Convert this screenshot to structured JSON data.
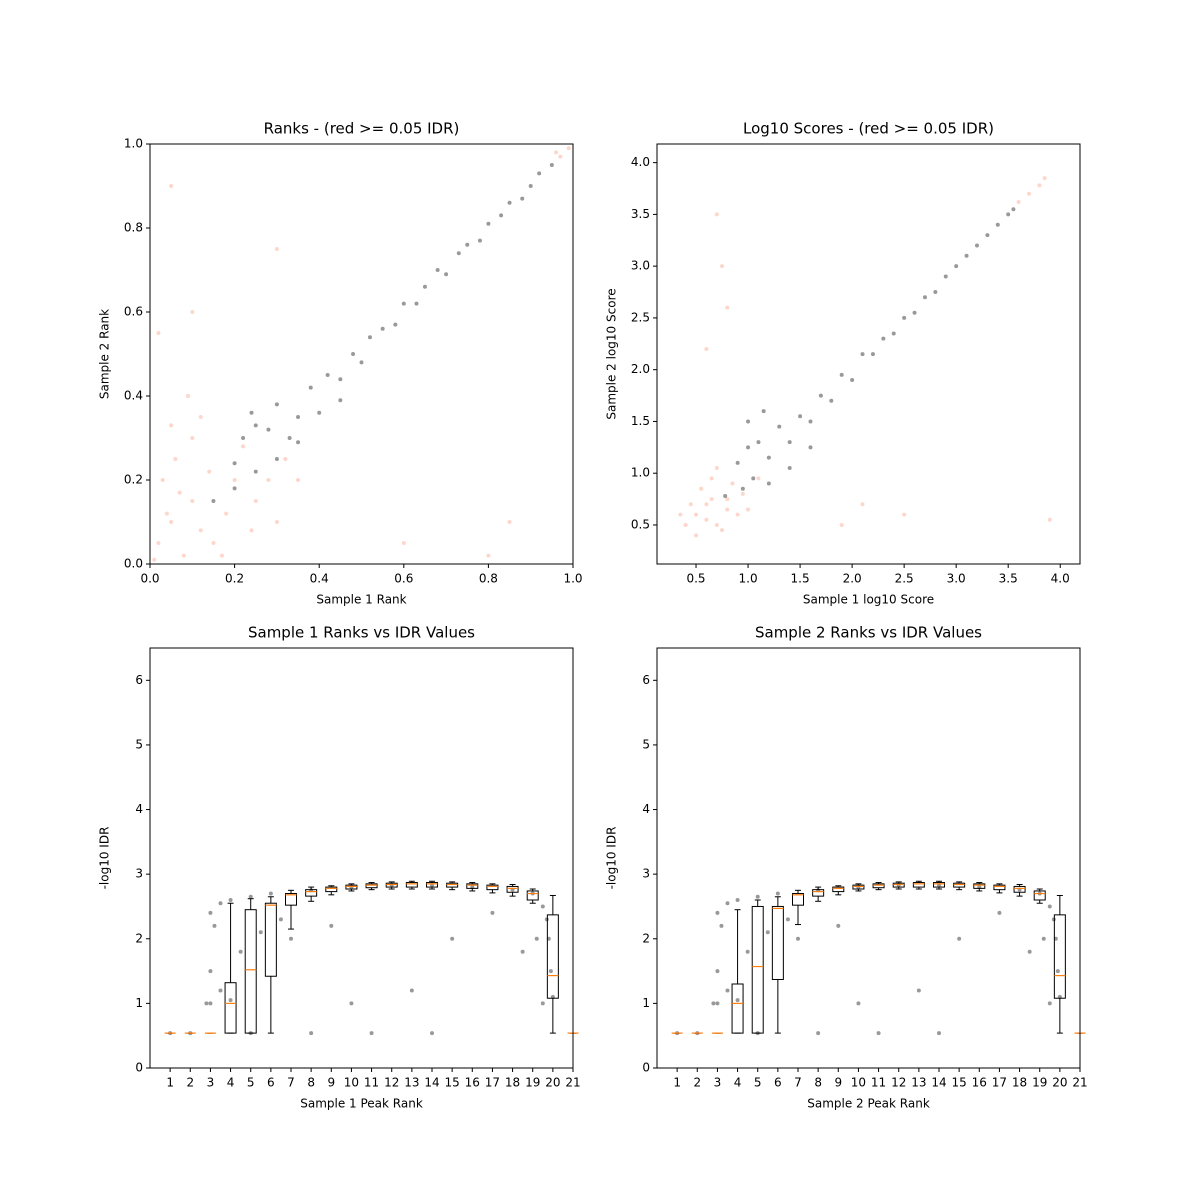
{
  "chart_data": [
    {
      "type": "scatter",
      "title": "Ranks - (red >= 0.05 IDR)",
      "x_label": "Sample 1 Rank",
      "y_label": "Sample 2 Rank",
      "xlim": [
        0,
        1
      ],
      "ylim": [
        0,
        1
      ],
      "xticks": [
        {
          "value": 0,
          "label": "0.0"
        },
        0.2,
        0.4,
        0.6,
        0.8,
        {
          "value": 1,
          "label": "1.0"
        }
      ],
      "yticks": [
        {
          "value": 0,
          "label": "0.0"
        },
        0.2,
        0.4,
        0.6,
        0.8,
        {
          "value": 1,
          "label": "1.0"
        }
      ],
      "series": [
        {
          "color": "#fa9a7c",
          "x": [
            0.02,
            0.05,
            0.08,
            0.1,
            0.12,
            0.03,
            0.15,
            0.18,
            0.2,
            0.06,
            0.25,
            0.1,
            0.28,
            0.22,
            0.3,
            0.01,
            0.04,
            0.14,
            0.35,
            0.05,
            0.97,
            0.99,
            0.96,
            0.05,
            0.1,
            0.6,
            0.85,
            0.3,
            0.8,
            0.02,
            0.07,
            0.17,
            0.24,
            0.12,
            0.32,
            0.09
          ],
          "values": [
            0.05,
            0.1,
            0.02,
            0.15,
            0.08,
            0.2,
            0.05,
            0.12,
            0.2,
            0.25,
            0.15,
            0.3,
            0.2,
            0.28,
            0.1,
            0.01,
            0.12,
            0.22,
            0.2,
            0.33,
            0.97,
            0.99,
            0.98,
            0.9,
            0.6,
            0.05,
            0.1,
            0.75,
            0.02,
            0.55,
            0.17,
            0.02,
            0.08,
            0.35,
            0.25,
            0.4
          ]
        },
        {
          "color": "#000000",
          "x": [
            0.15,
            0.2,
            0.22,
            0.25,
            0.25,
            0.3,
            0.3,
            0.33,
            0.35,
            0.38,
            0.4,
            0.42,
            0.45,
            0.48,
            0.5,
            0.52,
            0.55,
            0.58,
            0.6,
            0.63,
            0.65,
            0.68,
            0.7,
            0.73,
            0.75,
            0.78,
            0.8,
            0.83,
            0.85,
            0.88,
            0.9,
            0.92,
            0.95,
            0.2,
            0.28,
            0.35,
            0.45,
            0.24
          ],
          "values": [
            0.15,
            0.18,
            0.3,
            0.22,
            0.33,
            0.25,
            0.38,
            0.3,
            0.35,
            0.42,
            0.36,
            0.45,
            0.44,
            0.5,
            0.48,
            0.54,
            0.56,
            0.57,
            0.62,
            0.62,
            0.66,
            0.7,
            0.69,
            0.74,
            0.76,
            0.77,
            0.81,
            0.83,
            0.86,
            0.87,
            0.9,
            0.93,
            0.95,
            0.24,
            0.32,
            0.29,
            0.39,
            0.36
          ]
        }
      ]
    },
    {
      "type": "scatter",
      "title": "Log10 Scores - (red >= 0.05 IDR)",
      "x_label": "Sample 1 log10 Score",
      "y_label": "Sample 2 log10 Score",
      "xlim": [
        0.125,
        4.19
      ],
      "ylim": [
        0.123,
        4.18
      ],
      "xticks": [
        0.5,
        {
          "value": 1,
          "label": "1.0"
        },
        1.5,
        {
          "value": 2,
          "label": "2.0"
        },
        2.5,
        {
          "value": 3,
          "label": "3.0"
        },
        3.5,
        {
          "value": 4,
          "label": "4.0"
        }
      ],
      "yticks": [
        0.5,
        {
          "value": 1,
          "label": "1.0"
        },
        1.5,
        {
          "value": 2,
          "label": "2.0"
        },
        2.5,
        {
          "value": 3,
          "label": "3.0"
        },
        3.5,
        {
          "value": 4,
          "label": "4.0"
        }
      ],
      "series": [
        {
          "color": "#fa9a7c",
          "x": [
            0.5,
            0.6,
            0.7,
            0.8,
            0.9,
            0.55,
            0.65,
            0.75,
            0.85,
            0.45,
            0.95,
            0.6,
            1.0,
            0.7,
            1.1,
            0.4,
            0.5,
            0.8,
            0.65,
            0.35,
            3.6,
            3.7,
            3.8,
            3.85,
            0.7,
            0.75,
            0.8,
            1.9,
            2.5,
            3.9,
            2.1,
            0.6
          ],
          "values": [
            0.6,
            0.7,
            0.5,
            0.75,
            0.6,
            0.85,
            0.95,
            0.45,
            0.9,
            0.7,
            0.8,
            0.55,
            0.65,
            1.05,
            0.95,
            0.5,
            0.4,
            0.65,
            0.75,
            0.6,
            3.62,
            3.7,
            3.78,
            3.85,
            3.5,
            3.0,
            2.6,
            0.5,
            0.6,
            0.55,
            0.7,
            2.2
          ]
        },
        {
          "color": "#000000",
          "x": [
            0.78,
            0.9,
            0.95,
            1.0,
            1.05,
            1.1,
            1.2,
            1.3,
            1.4,
            1.5,
            1.6,
            1.7,
            1.8,
            1.9,
            2.0,
            2.1,
            2.2,
            2.3,
            2.4,
            2.5,
            2.6,
            2.7,
            2.8,
            2.9,
            3.0,
            3.1,
            3.2,
            3.3,
            3.4,
            3.5,
            3.55,
            1.2,
            1.4,
            1.6,
            1.0,
            1.15
          ],
          "values": [
            0.78,
            1.1,
            0.85,
            1.25,
            0.95,
            1.3,
            1.15,
            1.45,
            1.3,
            1.55,
            1.5,
            1.75,
            1.7,
            1.95,
            1.9,
            2.15,
            2.15,
            2.3,
            2.35,
            2.5,
            2.55,
            2.7,
            2.75,
            2.9,
            3.0,
            3.1,
            3.2,
            3.3,
            3.4,
            3.5,
            3.55,
            0.9,
            1.05,
            1.25,
            1.5,
            1.6
          ]
        }
      ]
    },
    {
      "type": "box",
      "title": "Sample 1 Ranks vs IDR Values",
      "x_label": "Sample 1 Peak Rank",
      "y_label": "-log10 IDR",
      "xlim": [
        0,
        21
      ],
      "ylim": [
        0,
        6.5
      ],
      "xticks": [
        1,
        2,
        3,
        4,
        5,
        6,
        7,
        8,
        9,
        10,
        11,
        12,
        13,
        14,
        15,
        16,
        17,
        18,
        19,
        20,
        21
      ],
      "yticks": [
        0,
        1,
        2,
        3,
        4,
        5,
        6
      ],
      "points": {
        "color": "#000000",
        "x": [
          2.8,
          3,
          3.2,
          3,
          3.5,
          4,
          5,
          6,
          8,
          10,
          12,
          14,
          16,
          18,
          19,
          19.5,
          19.8,
          19.9,
          20,
          19.7,
          19.2,
          18.5,
          3.5,
          4.5,
          5.5,
          6.5,
          7,
          9,
          10,
          13,
          15,
          17,
          19.5,
          5,
          8,
          11,
          14,
          1,
          2,
          3,
          4
        ],
        "values": [
          1.0,
          1.5,
          2.2,
          2.4,
          2.55,
          2.6,
          2.65,
          2.7,
          2.75,
          2.8,
          2.83,
          2.83,
          2.8,
          2.76,
          2.7,
          2.5,
          2.0,
          1.5,
          1.1,
          2.3,
          2.0,
          1.8,
          1.2,
          1.8,
          2.1,
          2.3,
          2.0,
          2.2,
          1.0,
          1.2,
          2.0,
          2.4,
          1.0,
          0.54,
          0.54,
          0.54,
          0.54,
          0.54,
          0.54,
          1.0,
          1.05
        ]
      },
      "boxes": {
        "q1": [
          0.54,
          0.54,
          0.54,
          0.54,
          0.54,
          1.42,
          2.52,
          2.66,
          2.73,
          2.77,
          2.79,
          2.8,
          2.8,
          2.8,
          2.8,
          2.78,
          2.76,
          2.72,
          2.6,
          1.08,
          0.54
        ],
        "median": [
          0.54,
          0.54,
          0.54,
          1.0,
          1.52,
          2.52,
          2.68,
          2.73,
          2.78,
          2.81,
          2.83,
          2.84,
          2.85,
          2.85,
          2.84,
          2.83,
          2.81,
          2.78,
          2.7,
          1.43,
          0.54
        ],
        "q3": [
          0.54,
          0.54,
          0.54,
          1.32,
          2.45,
          2.55,
          2.7,
          2.76,
          2.8,
          2.83,
          2.85,
          2.86,
          2.87,
          2.87,
          2.86,
          2.85,
          2.83,
          2.81,
          2.74,
          2.37,
          0.54
        ],
        "whislo": [
          0.54,
          0.54,
          0.54,
          0.54,
          0.54,
          0.54,
          2.15,
          2.58,
          2.68,
          2.74,
          2.76,
          2.77,
          2.77,
          2.77,
          2.76,
          2.74,
          2.71,
          2.66,
          2.55,
          0.54,
          0.54
        ],
        "whishi": [
          0.54,
          0.54,
          0.54,
          2.55,
          2.62,
          2.65,
          2.75,
          2.8,
          2.82,
          2.85,
          2.87,
          2.88,
          2.89,
          2.89,
          2.88,
          2.87,
          2.85,
          2.84,
          2.77,
          2.67,
          0.54
        ]
      }
    },
    {
      "type": "box",
      "title": "Sample 2 Ranks vs IDR Values",
      "x_label": "Sample 2 Peak Rank",
      "y_label": "-log10 IDR",
      "xlim": [
        0,
        21
      ],
      "ylim": [
        0,
        6.5
      ],
      "xticks": [
        1,
        2,
        3,
        4,
        5,
        6,
        7,
        8,
        9,
        10,
        11,
        12,
        13,
        14,
        15,
        16,
        17,
        18,
        19,
        20,
        21
      ],
      "yticks": [
        0,
        1,
        2,
        3,
        4,
        5,
        6
      ],
      "points": {
        "color": "#000000",
        "x": [
          2.8,
          3,
          3.2,
          3,
          3.5,
          4,
          5,
          6,
          8,
          10,
          12,
          14,
          16,
          18,
          19,
          19.5,
          19.8,
          19.9,
          20,
          19.7,
          19.2,
          18.5,
          3.5,
          4.5,
          5.5,
          6.5,
          7,
          9,
          10,
          13,
          15,
          17,
          19.5,
          5,
          8,
          11,
          14,
          1,
          2,
          3,
          4
        ],
        "values": [
          1.0,
          1.5,
          2.2,
          2.4,
          2.55,
          2.6,
          2.65,
          2.7,
          2.75,
          2.8,
          2.83,
          2.83,
          2.8,
          2.76,
          2.7,
          2.5,
          2.0,
          1.5,
          1.1,
          2.3,
          2.0,
          1.8,
          1.2,
          1.8,
          2.1,
          2.3,
          2.0,
          2.2,
          1.0,
          1.2,
          2.0,
          2.4,
          1.0,
          0.54,
          0.54,
          0.54,
          0.54,
          0.54,
          0.54,
          1.0,
          1.05
        ]
      },
      "boxes": {
        "q1": [
          0.54,
          0.54,
          0.54,
          0.54,
          0.54,
          1.37,
          2.52,
          2.66,
          2.73,
          2.77,
          2.79,
          2.8,
          2.8,
          2.8,
          2.8,
          2.78,
          2.76,
          2.72,
          2.6,
          1.08,
          0.54
        ],
        "median": [
          0.54,
          0.54,
          0.54,
          1.0,
          1.57,
          2.47,
          2.68,
          2.73,
          2.78,
          2.81,
          2.83,
          2.84,
          2.85,
          2.85,
          2.84,
          2.83,
          2.81,
          2.78,
          2.7,
          1.43,
          0.54
        ],
        "q3": [
          0.54,
          0.54,
          0.54,
          1.3,
          2.5,
          2.5,
          2.7,
          2.76,
          2.8,
          2.83,
          2.85,
          2.86,
          2.87,
          2.87,
          2.86,
          2.85,
          2.83,
          2.81,
          2.74,
          2.37,
          0.54
        ],
        "whislo": [
          0.54,
          0.54,
          0.54,
          0.54,
          0.54,
          0.54,
          2.22,
          2.58,
          2.68,
          2.74,
          2.76,
          2.77,
          2.77,
          2.77,
          2.76,
          2.74,
          2.71,
          2.66,
          2.55,
          0.54,
          0.54
        ],
        "whishi": [
          0.54,
          0.54,
          0.54,
          2.45,
          2.6,
          2.65,
          2.75,
          2.8,
          2.82,
          2.85,
          2.87,
          2.88,
          2.89,
          2.89,
          2.88,
          2.87,
          2.85,
          2.84,
          2.77,
          2.67,
          0.54
        ]
      }
    }
  ]
}
